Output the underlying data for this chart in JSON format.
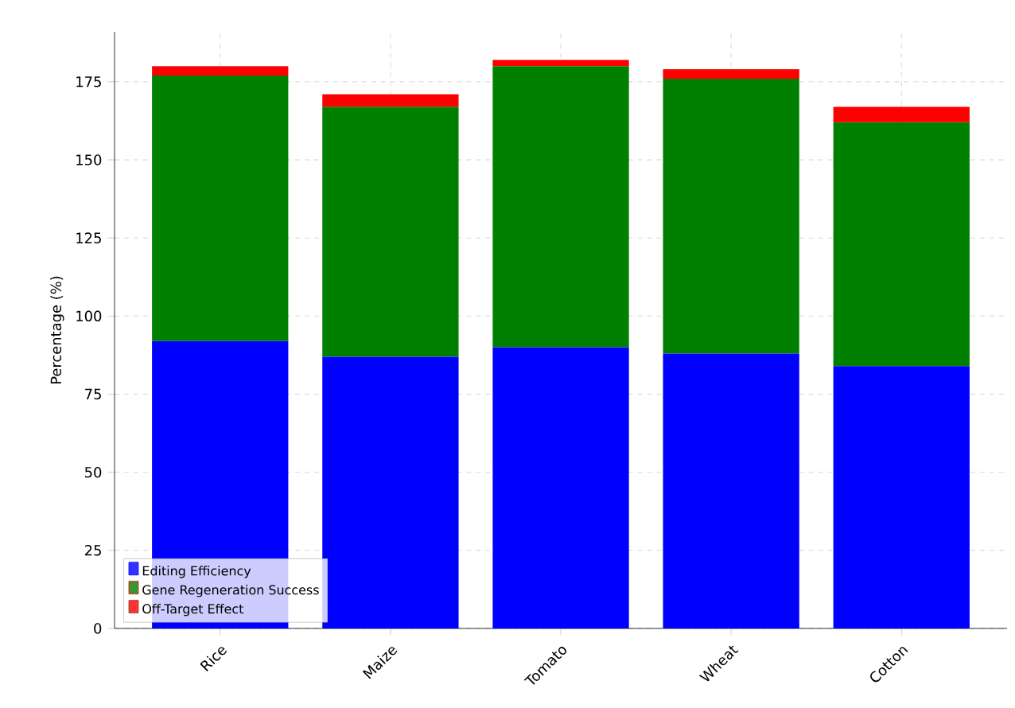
{
  "chart_data": {
    "type": "bar",
    "stacked": true,
    "ylabel": "Percentage (%)",
    "categories": [
      "Rice",
      "Maize",
      "Tomato",
      "Wheat",
      "Cotton"
    ],
    "series": [
      {
        "name": "Editing Efficiency",
        "color": "#0000ff",
        "values": [
          92,
          87,
          90,
          88,
          84
        ]
      },
      {
        "name": "Gene Regeneration Success",
        "color": "#008000",
        "values": [
          85,
          80,
          90,
          88,
          78
        ]
      },
      {
        "name": "Off-Target Effect",
        "color": "#ff0000",
        "values": [
          3,
          4,
          2,
          3,
          5
        ]
      }
    ],
    "ylim": [
      0,
      191
    ],
    "yticks": [
      0,
      25,
      50,
      75,
      100,
      125,
      150,
      175
    ],
    "grid": true,
    "legend": "bottom left"
  }
}
